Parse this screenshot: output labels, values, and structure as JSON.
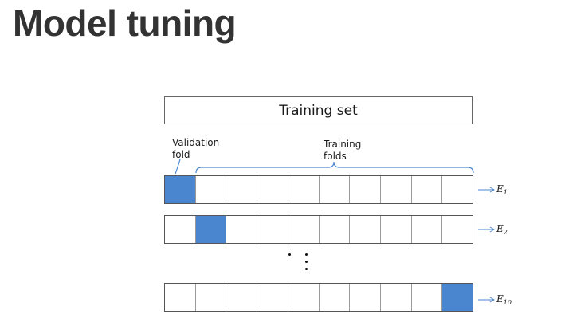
{
  "title": "Model tuning",
  "diagram": {
    "training_set_label": "Training set",
    "validation_label": [
      "Validation",
      "fold"
    ],
    "training_folds_label": [
      "Training",
      "folds"
    ],
    "fold_count": 10,
    "colors": {
      "validation": "#4a86cf",
      "accent": "#4a86cf",
      "border": "#555555"
    },
    "rows": [
      {
        "error_label": "E",
        "error_sub": "1",
        "validation_index": 1
      },
      {
        "error_label": "E",
        "error_sub": "2",
        "validation_index": 2
      },
      {
        "error_label": "E",
        "error_sub": "10",
        "validation_index": 10
      }
    ],
    "ellipsis": "⋮"
  }
}
